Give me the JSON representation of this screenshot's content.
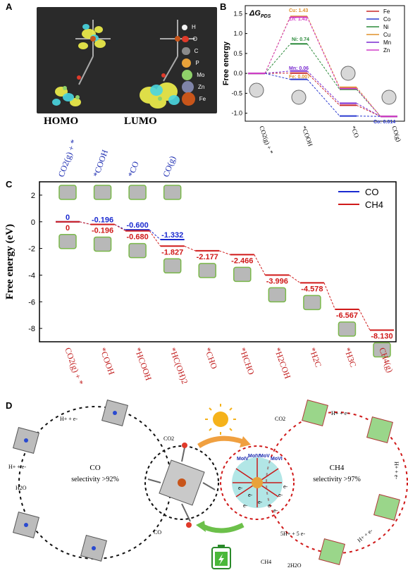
{
  "panels": {
    "a": "A",
    "b": "B",
    "c": "C",
    "d": "D"
  },
  "panel_a": {
    "homo_label": "HOMO",
    "lumo_label": "LUMO",
    "legend": [
      {
        "label": "H",
        "color": "#f2f2f2"
      },
      {
        "label": "O",
        "color": "#e03a2a"
      },
      {
        "label": "C",
        "color": "#8a8a8a"
      },
      {
        "label": "P",
        "color": "#e8a23a"
      },
      {
        "label": "Mo",
        "color": "#8fd16a"
      },
      {
        "label": "Zn",
        "color": "#7f84a8"
      },
      {
        "label": "Fe",
        "color": "#c8551a"
      }
    ]
  },
  "panel_b": {
    "title": "ΔG",
    "title_sub": "PDS",
    "ylabel": "Free energy",
    "yticks": [
      "1.5",
      "1.0",
      "0.5",
      "0.0",
      "-0.5",
      "-1.0"
    ],
    "xticks": [
      "CO2(g) + *",
      "*COOH",
      "*CO",
      "CO(g)"
    ],
    "annotations": [
      {
        "text": "Cu: 1.43",
        "color": "#e0902a"
      },
      {
        "text": "Zn: 1.41",
        "color": "#d23cc8"
      },
      {
        "text": "Ni: 0.74",
        "color": "#2a8a3a"
      },
      {
        "text": "Mn: 0.06",
        "color": "#7a2ad0"
      },
      {
        "text": "Fe: 0.007",
        "color": "#e0902a"
      },
      {
        "text": "Co: 0.014",
        "color": "#2a3ad0"
      }
    ],
    "legend": [
      {
        "label": "Fe",
        "color": "#c8282a"
      },
      {
        "label": "Co",
        "color": "#2a3ad0"
      },
      {
        "label": "Ni",
        "color": "#2a8a3a"
      },
      {
        "label": "Cu",
        "color": "#e0902a"
      },
      {
        "label": "Mn",
        "color": "#7a2ad0"
      },
      {
        "label": "Zn",
        "color": "#d23cc8"
      }
    ]
  },
  "chart_data": {
    "type": "line",
    "title": "",
    "xlabel": "",
    "ylabel": "Free energy (eV)",
    "ylim": [
      -9,
      3
    ],
    "yticks": [
      "2",
      "0",
      "-2",
      "-4",
      "-6",
      "-8"
    ],
    "top_categories": [
      "CO2(g) + *",
      "*COOH",
      "*CO",
      "CO(g)"
    ],
    "bottom_categories": [
      "CO2(g) + *",
      "*COOH",
      "*HCOOH",
      "*HC(OH)2",
      "*CHO",
      "*HCHO",
      "*H2COH",
      "*H2C",
      "*H3C",
      "CH4(g)"
    ],
    "series": [
      {
        "name": "CO",
        "color": "#1a2ad0",
        "values": [
          0,
          -0.196,
          -0.6,
          -1.332
        ],
        "labels": [
          "0",
          "-0.196",
          "-0.600",
          "-1.332"
        ]
      },
      {
        "name": "CH4",
        "color": "#d01a1a",
        "values": [
          0,
          -0.196,
          -0.68,
          -1.827,
          -2.177,
          -2.466,
          -3.996,
          -4.578,
          -6.567,
          -8.13
        ],
        "labels": [
          "0",
          "-0.196",
          "-0.680",
          "-1.827",
          "-2.177",
          "-2.466",
          "-3.996",
          "-4.578",
          "-6.567",
          "-8.130"
        ]
      }
    ],
    "legend": [
      {
        "label": "CO",
        "color": "#1a2ad0"
      },
      {
        "label": "CH4",
        "color": "#d01a1a"
      }
    ]
  },
  "panel_d": {
    "left_title": "CO",
    "left_sub": "selectivity >92%",
    "right_title": "CH4",
    "right_sub": "selectivity >97%",
    "co2_left": "CO2",
    "co2_right": "CO2",
    "co_out": "CO",
    "ch4_out": "CH4",
    "h2o_left": "H2O",
    "h2o_right": "2H2O",
    "step_label": "H+ + e-",
    "five_label": "5H+ + 5 e-",
    "mo_labels": [
      "MoIV",
      "MoIV",
      "MoV",
      "MoVI"
    ],
    "e_labels": [
      "e-",
      "e-",
      "e-",
      "e-",
      "e-",
      "e-",
      "e-",
      "e-"
    ]
  }
}
